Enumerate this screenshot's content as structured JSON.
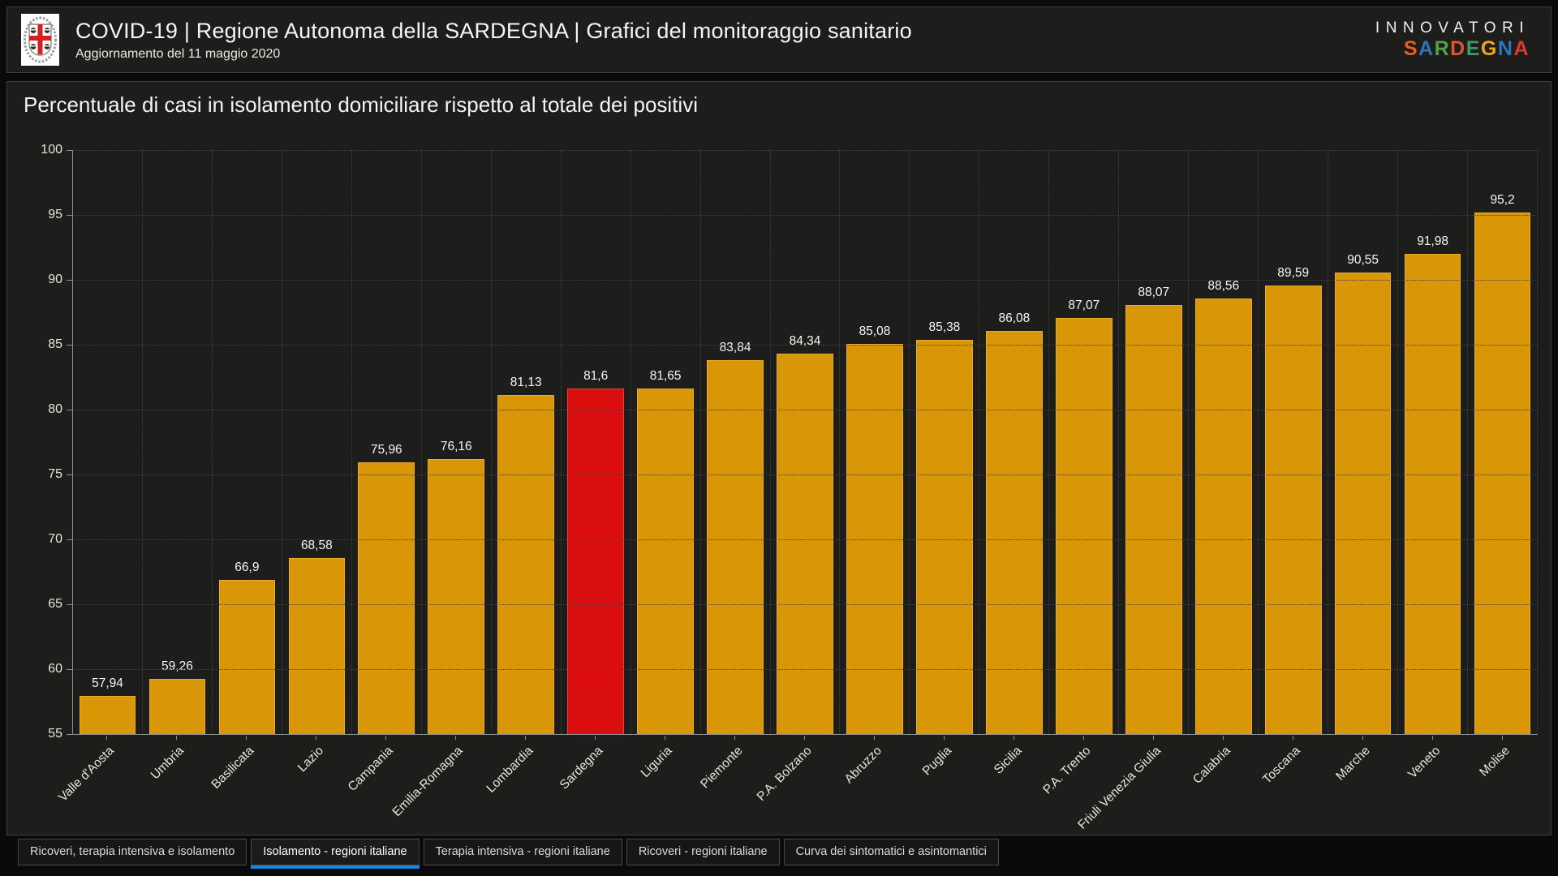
{
  "header": {
    "title": "COVID-19 | Regione Autonoma della SARDEGNA | Grafici del monitoraggio sanitario",
    "subtitle": "Aggiornamento del 11 maggio 2020",
    "logo": "sardegna-coat-of-arms",
    "brand": {
      "line1": "INNOVATORI",
      "line2": "SARDEGNA",
      "letters": [
        {
          "ch": "S",
          "color": "#E95D20"
        },
        {
          "ch": "A",
          "color": "#2F74B9"
        },
        {
          "ch": "R",
          "color": "#52A147"
        },
        {
          "ch": "D",
          "color": "#E2542B"
        },
        {
          "ch": "E",
          "color": "#3D9A63"
        },
        {
          "ch": "G",
          "color": "#F0A51D"
        },
        {
          "ch": "N",
          "color": "#2F74B9"
        },
        {
          "ch": "A",
          "color": "#D93A2B"
        }
      ]
    }
  },
  "chart_data": {
    "type": "bar",
    "title": "Percentuale di casi in isolamento domiciliare rispetto al totale dei positivi",
    "categories": [
      "Valle d'Aosta",
      "Umbria",
      "Basilicata",
      "Lazio",
      "Campania",
      "Emilia-Romagna",
      "Lombardia",
      "Sardegna",
      "Liguria",
      "Piemonte",
      "P.A. Bolzano",
      "Abruzzo",
      "Puglia",
      "Sicilia",
      "P.A. Trento",
      "Friuli Venezia Giulia",
      "Calabria",
      "Toscana",
      "Marche",
      "Veneto",
      "Molise"
    ],
    "values": [
      57.94,
      59.26,
      66.9,
      68.58,
      75.96,
      76.16,
      81.13,
      81.6,
      81.65,
      83.84,
      84.34,
      85.08,
      85.38,
      86.08,
      87.07,
      88.07,
      88.56,
      89.59,
      90.55,
      91.98,
      95.2
    ],
    "value_labels": [
      "57,94",
      "59,26",
      "66,9",
      "68,58",
      "75,96",
      "76,16",
      "81,13",
      "81,6",
      "81,65",
      "83,84",
      "84,34",
      "85,08",
      "85,38",
      "86,08",
      "87,07",
      "88,07",
      "88,56",
      "89,59",
      "90,55",
      "91,98",
      "95,2"
    ],
    "highlight_category": "Sardegna",
    "bar_color": "#D99606",
    "highlight_color": "#DA0E0E",
    "xlabel": "",
    "ylabel": "",
    "ylim": [
      55,
      100
    ],
    "yticks": [
      100,
      95,
      90,
      85,
      80,
      75,
      70,
      65,
      60,
      55
    ],
    "grid": true,
    "legend": "none"
  },
  "tabs": {
    "accent_color": "#1B84E7",
    "items": [
      {
        "label": "Ricoveri, terapia intensiva e isolamento",
        "active": false
      },
      {
        "label": "Isolamento - regioni italiane",
        "active": true
      },
      {
        "label": "Terapia intensiva - regioni italiane",
        "active": false
      },
      {
        "label": "Ricoveri - regioni italiane",
        "active": false
      },
      {
        "label": "Curva dei sintomatici e asintomantici",
        "active": false
      }
    ]
  }
}
